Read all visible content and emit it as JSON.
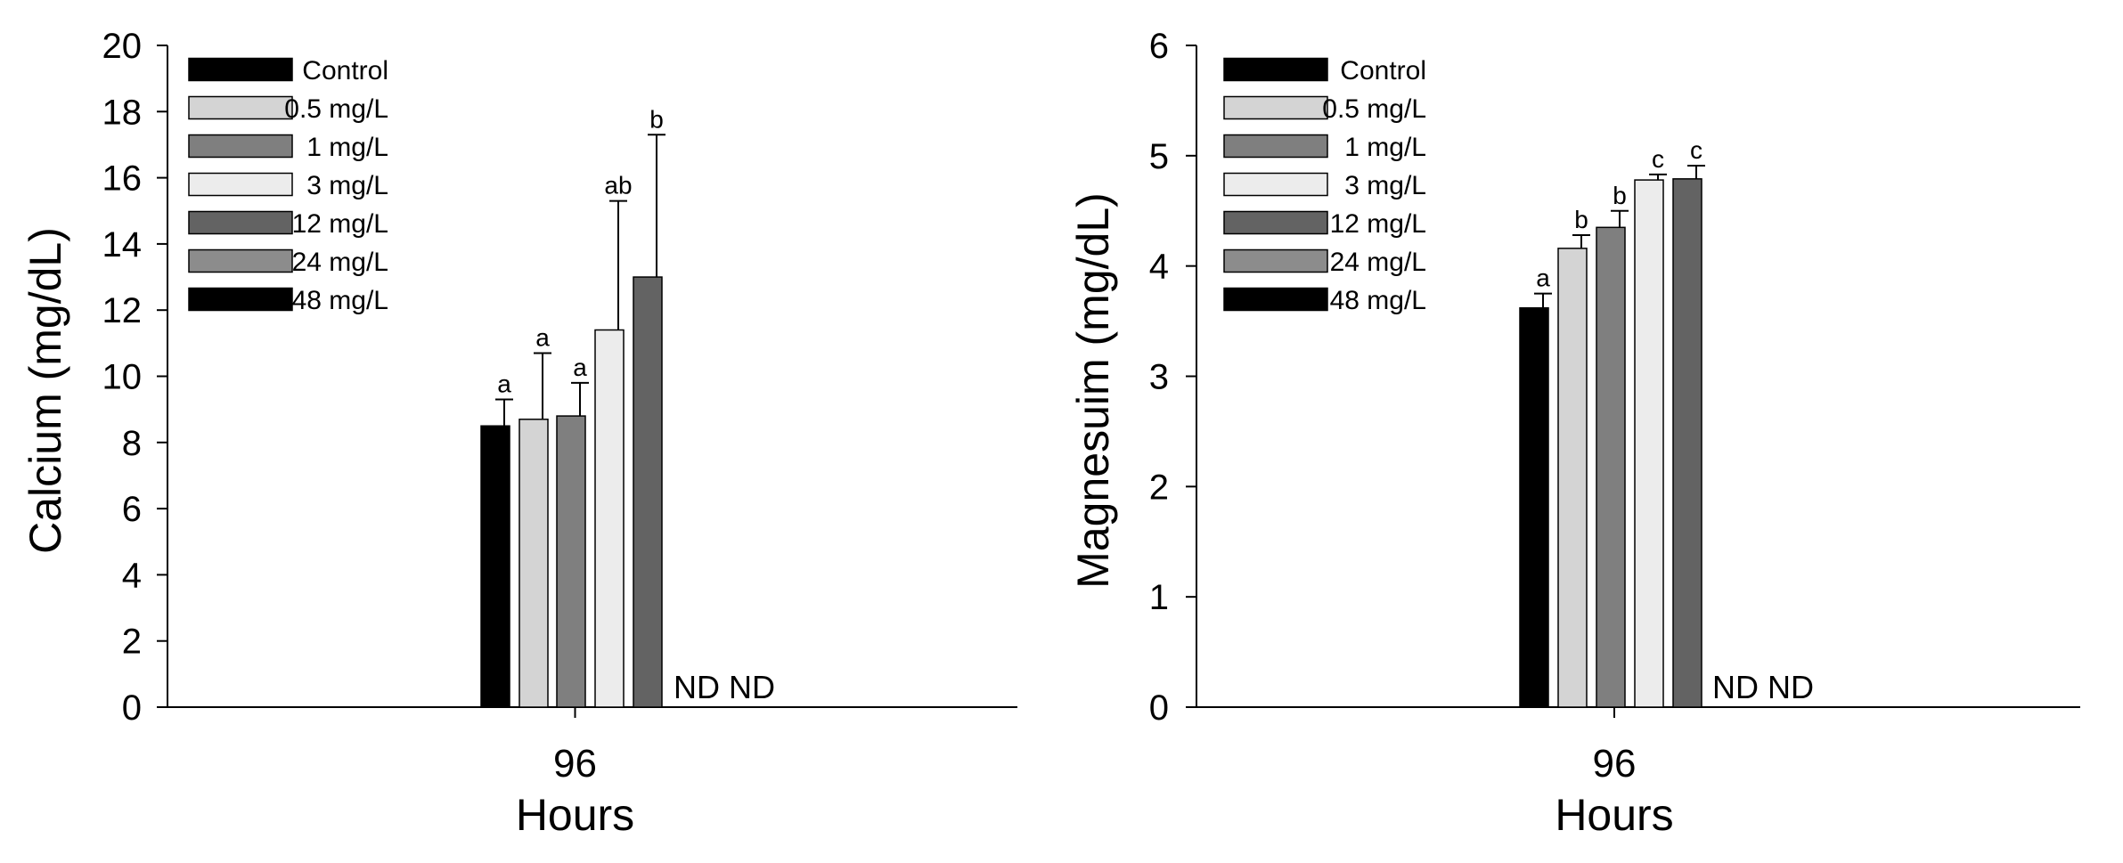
{
  "legend_entries": [
    "Control",
    "0.5 mg/L",
    "1 mg/L",
    "3 mg/L",
    "12 mg/L",
    "24 mg/L",
    "48 mg/L"
  ],
  "colors": {
    "Control": "#000000",
    "0.5 mg/L": "#d4d4d4",
    "1 mg/L": "#7f7f7f",
    "3 mg/L": "#ececec",
    "12 mg/L": "#636363",
    "24 mg/L": "#8c8c8c",
    "48 mg/L": "#000000"
  },
  "chart_data": [
    {
      "type": "bar",
      "xlabel": "Hours",
      "ylabel": "Calcium (mg/dL)",
      "categories": [
        "96"
      ],
      "ylim": [
        0,
        20
      ],
      "yticks": [
        0,
        2,
        4,
        6,
        8,
        10,
        12,
        14,
        16,
        18,
        20
      ],
      "legend_position": "top-left",
      "series": [
        {
          "name": "Control",
          "values": [
            8.5
          ],
          "error": [
            0.8
          ],
          "label": "a"
        },
        {
          "name": "0.5 mg/L",
          "values": [
            8.7
          ],
          "error": [
            2.0
          ],
          "label": "a"
        },
        {
          "name": "1 mg/L",
          "values": [
            8.8
          ],
          "error": [
            1.0
          ],
          "label": "a"
        },
        {
          "name": "3 mg/L",
          "values": [
            11.4
          ],
          "error": [
            3.9
          ],
          "label": "ab"
        },
        {
          "name": "12 mg/L",
          "values": [
            13.0
          ],
          "error": [
            4.3
          ],
          "label": "b"
        },
        {
          "name": "24 mg/L",
          "values": [
            null
          ],
          "error": [
            null
          ],
          "label": "ND"
        },
        {
          "name": "48 mg/L",
          "values": [
            null
          ],
          "error": [
            null
          ],
          "label": "ND"
        }
      ]
    },
    {
      "type": "bar",
      "xlabel": "Hours",
      "ylabel": "Magnesuim (mg/dL)",
      "categories": [
        "96"
      ],
      "ylim": [
        0,
        6
      ],
      "yticks": [
        0,
        1,
        2,
        3,
        4,
        5,
        6
      ],
      "legend_position": "top-left",
      "series": [
        {
          "name": "Control",
          "values": [
            3.62
          ],
          "error": [
            0.13
          ],
          "label": "a"
        },
        {
          "name": "0.5 mg/L",
          "values": [
            4.16
          ],
          "error": [
            0.12
          ],
          "label": "b"
        },
        {
          "name": "1 mg/L",
          "values": [
            4.35
          ],
          "error": [
            0.15
          ],
          "label": "b"
        },
        {
          "name": "3 mg/L",
          "values": [
            4.78
          ],
          "error": [
            0.05
          ],
          "label": "c"
        },
        {
          "name": "12 mg/L",
          "values": [
            4.79
          ],
          "error": [
            0.12
          ],
          "label": "c"
        },
        {
          "name": "24 mg/L",
          "values": [
            null
          ],
          "error": [
            null
          ],
          "label": "ND"
        },
        {
          "name": "48 mg/L",
          "values": [
            null
          ],
          "error": [
            null
          ],
          "label": "ND"
        }
      ]
    }
  ]
}
